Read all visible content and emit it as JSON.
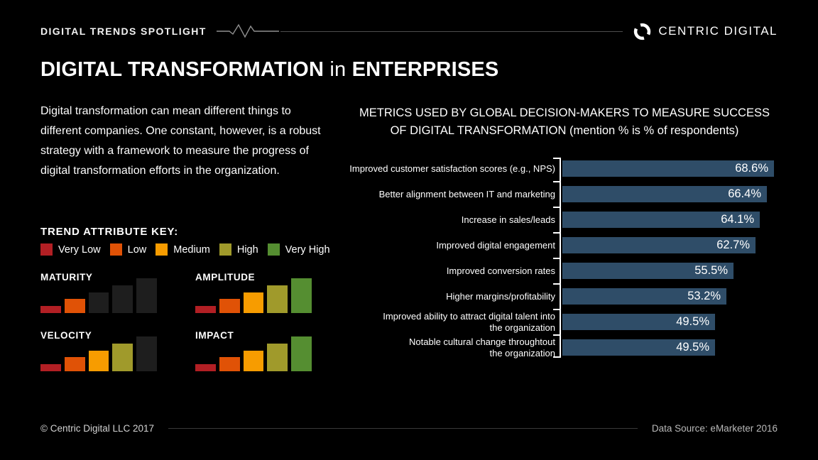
{
  "header": {
    "eyebrow": "DIGITAL TRENDS SPOTLIGHT",
    "brand": "CENTRIC DIGITAL"
  },
  "title": {
    "bold1": "DIGITAL TRANSFORMATION",
    "thin": " in ",
    "bold2": "ENTERPRISES"
  },
  "intro": "Digital transformation can mean different things to\ndifferent companies. One constant, however, is a robust\nstrategy with a framework to measure the progress of\ndigital transformation efforts in the organization.",
  "trend_key": {
    "title": "TREND ATTRIBUTE KEY:",
    "inactive_color": "#1e1e1e",
    "items": [
      {
        "label": "Very Low",
        "color": "#b21f24"
      },
      {
        "label": "Low",
        "color": "#e05206"
      },
      {
        "label": "Medium",
        "color": "#f79c00"
      },
      {
        "label": "High",
        "color": "#a09a2b"
      },
      {
        "label": "Very High",
        "color": "#558e31"
      }
    ]
  },
  "trend_charts": [
    {
      "name": "MATURITY",
      "level_label": "Low",
      "bars_colored": 2
    },
    {
      "name": "AMPLITUDE",
      "level_label": "Very High",
      "bars_colored": 5
    },
    {
      "name": "VELOCITY",
      "level_label": "High",
      "bars_colored": 4
    },
    {
      "name": "IMPACT",
      "level_label": "Very High",
      "bars_colored": 5
    }
  ],
  "chart_data": {
    "type": "bar",
    "orientation": "horizontal",
    "title": "METRICS USED BY GLOBAL DECISION-MAKERS TO MEASURE SUCCESS OF DIGITAL TRANSFORMATION (mention % is % of respondents)",
    "categories": [
      "Improved customer satisfaction scores (e.g., NPS)",
      "Better alignment between IT and marketing",
      "Increase in sales/leads",
      "Improved digital engagement",
      "Improved conversion rates",
      "Higher margins/profitability",
      "Improved ability to attract digital talent into\nthe organization",
      "Notable cultural change throughtout\nthe organization"
    ],
    "values": [
      68.6,
      66.4,
      64.1,
      62.7,
      55.5,
      53.2,
      49.5,
      49.5
    ],
    "value_suffix": "%",
    "bar_color": "#2f4d68",
    "xlim": [
      0,
      73
    ],
    "grid": false,
    "legend_position": "none"
  },
  "footer": {
    "copyright": "© Centric Digital LLC 2017",
    "source": "Data Source: eMarketer 2016"
  }
}
